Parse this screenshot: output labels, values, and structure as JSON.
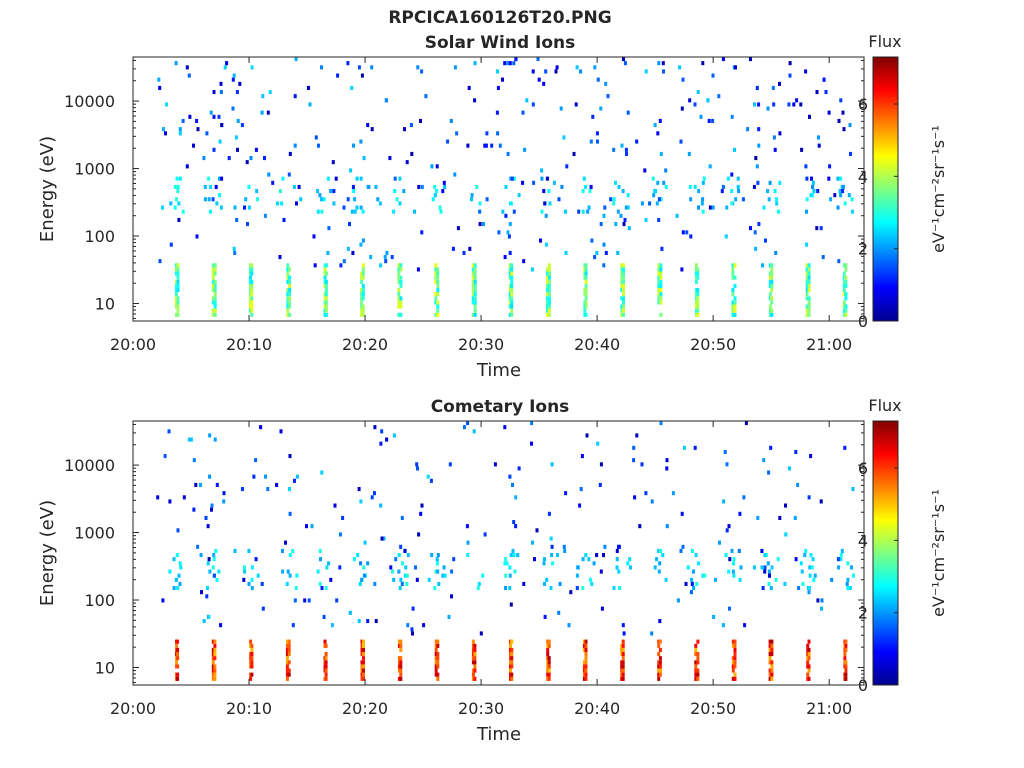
{
  "figure": {
    "title": "RPCICA160126T20.PNG"
  },
  "chart_data": [
    {
      "type": "heatmap",
      "title": "Solar Wind Ions",
      "xlabel": "Time",
      "ylabel": "Energy (eV)",
      "x_tick_labels": [
        "20:00",
        "20:10",
        "20:20",
        "20:30",
        "20:40",
        "20:50",
        "21:00"
      ],
      "x_tick_values_min": [
        0,
        10,
        20,
        30,
        40,
        50,
        60
      ],
      "xlim_min": [
        0,
        63
      ],
      "y_tick_labels": [
        "10",
        "100",
        "1000",
        "10000"
      ],
      "y_tick_values": [
        10,
        100,
        1000,
        10000
      ],
      "ylim": [
        5.5,
        45000
      ],
      "y_scale": "log",
      "colorbar": {
        "title": "Flux",
        "label": "eV⁻¹cm⁻²sr⁻¹s⁻¹",
        "range": [
          0,
          7.3
        ],
        "ticks": [
          "0",
          "2",
          "4",
          "6"
        ],
        "colormap": "jet"
      },
      "sweeps_min": [
        3.6,
        6.8,
        10.0,
        13.2,
        16.4,
        19.6,
        22.8,
        26.0,
        29.2,
        32.4,
        35.6,
        38.8,
        42.0,
        45.2,
        48.4,
        51.6,
        54.8,
        58.0,
        61.2
      ],
      "low_energy_band": {
        "energy_ev": [
          6,
          40
        ],
        "flux_range": [
          2.5,
          4.5
        ]
      },
      "mid_energy_band": {
        "energy_ev": [
          200,
          800
        ],
        "flux_range": [
          2.0,
          3.0
        ]
      },
      "sparse_flux_range": [
        0.3,
        2.5
      ]
    },
    {
      "type": "heatmap",
      "title": "Cometary Ions",
      "xlabel": "Time",
      "ylabel": "Energy (eV)",
      "x_tick_labels": [
        "20:00",
        "20:10",
        "20:20",
        "20:30",
        "20:40",
        "20:50",
        "21:00"
      ],
      "x_tick_values_min": [
        0,
        10,
        20,
        30,
        40,
        50,
        60
      ],
      "xlim_min": [
        0,
        63
      ],
      "y_tick_labels": [
        "10",
        "100",
        "1000",
        "10000"
      ],
      "y_tick_values": [
        10,
        100,
        1000,
        10000
      ],
      "ylim": [
        5.5,
        45000
      ],
      "y_scale": "log",
      "colorbar": {
        "title": "Flux",
        "label": "eV⁻¹cm⁻²sr⁻¹s⁻¹",
        "range": [
          0,
          7.3
        ],
        "ticks": [
          "0",
          "2",
          "4",
          "6"
        ],
        "colormap": "jet"
      },
      "sweeps_min": [
        3.6,
        6.8,
        10.0,
        13.2,
        16.4,
        19.6,
        22.8,
        26.0,
        29.2,
        32.4,
        35.6,
        38.8,
        42.0,
        45.2,
        48.4,
        51.6,
        54.8,
        58.0,
        61.2
      ],
      "low_energy_band": {
        "energy_ev": [
          6,
          25
        ],
        "flux_range": [
          5.0,
          7.0
        ]
      },
      "mid_energy_band": {
        "energy_ev": [
          150,
          600
        ],
        "flux_range": [
          2.0,
          3.0
        ]
      },
      "sparse_flux_range": [
        0.3,
        2.5
      ]
    }
  ]
}
